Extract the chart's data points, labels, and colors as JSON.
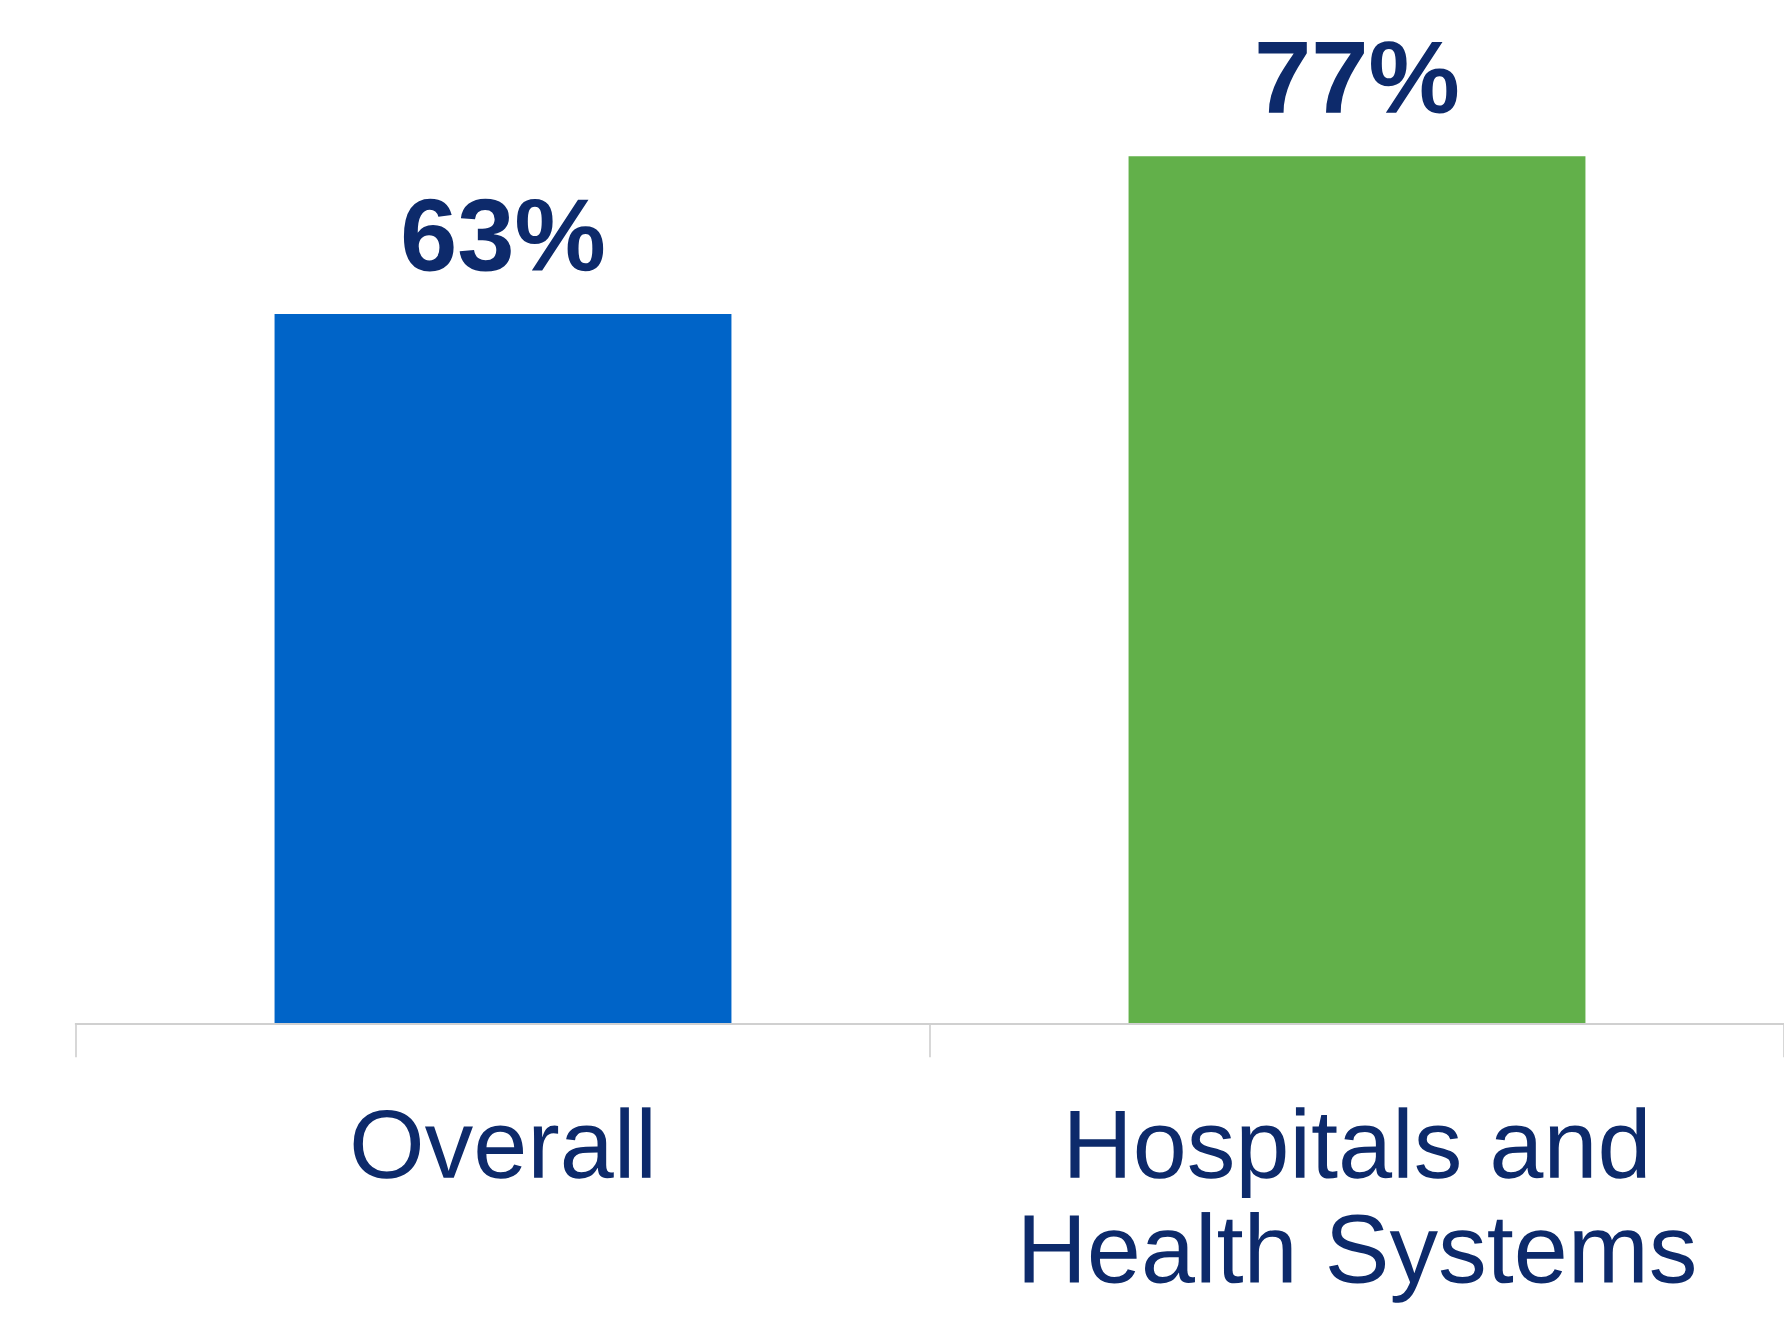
{
  "chart_data": {
    "type": "bar",
    "categories": [
      "Overall",
      "Hospitals and\nHealth Systems"
    ],
    "values": [
      63,
      77
    ],
    "colors": [
      "#0064c8",
      "#62b04a"
    ],
    "value_labels": [
      "63%",
      "77%"
    ],
    "grid": false,
    "legend": false
  }
}
